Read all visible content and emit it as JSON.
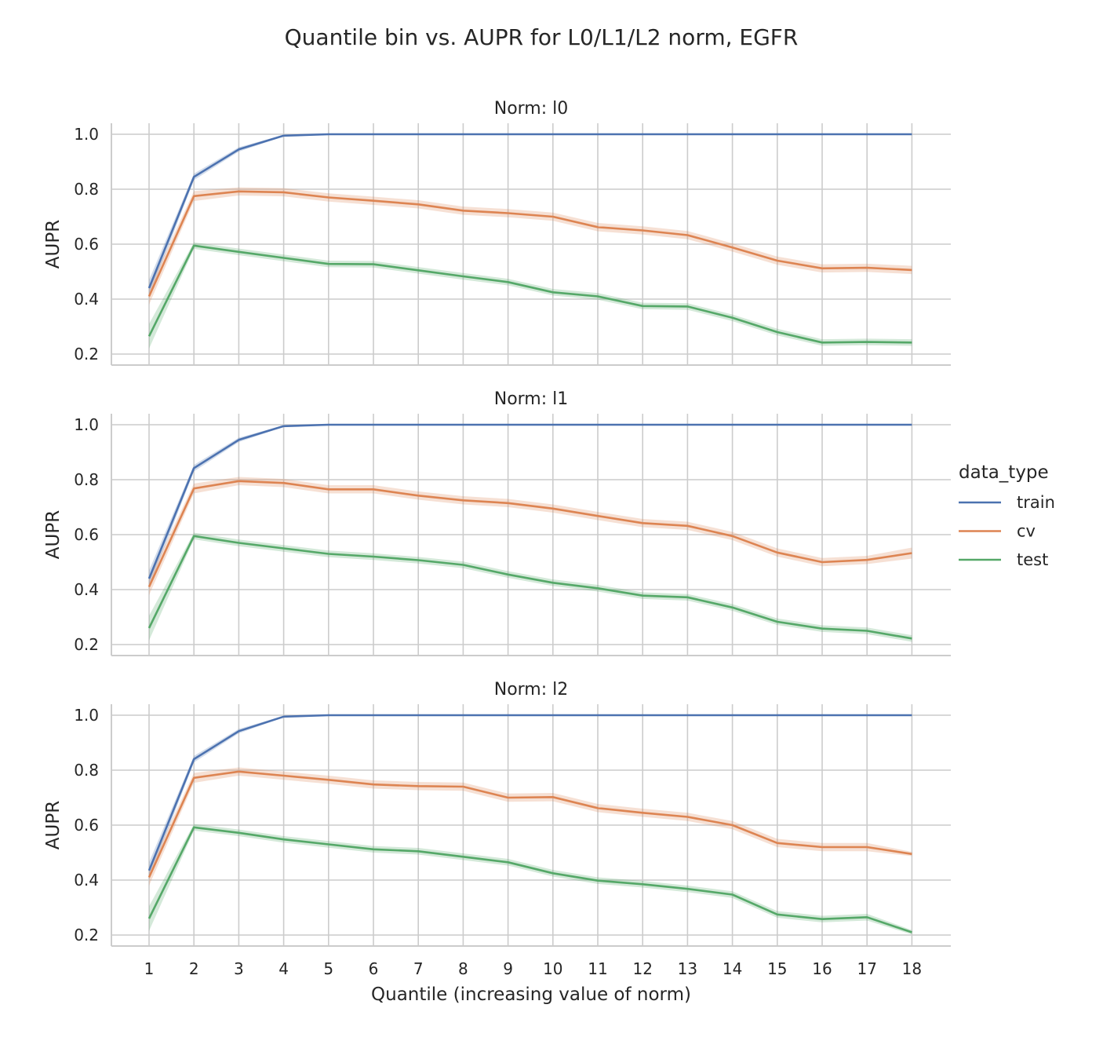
{
  "chart_data": {
    "type": "line",
    "title": "Quantile bin vs. AUPR for L0/L1/L2 norm, EGFR",
    "xlabel": "Quantile (increasing value of norm)",
    "ylabel": "AUPR",
    "x": [
      1,
      2,
      3,
      4,
      5,
      6,
      7,
      8,
      9,
      10,
      11,
      12,
      13,
      14,
      15,
      16,
      17,
      18
    ],
    "yticks": [
      "0.2",
      "0.4",
      "0.6",
      "0.8",
      "1.0"
    ],
    "ylim": [
      0.16,
      1.04
    ],
    "grid": true,
    "legend": {
      "title": "data_type",
      "placement": "right",
      "entries": [
        "train",
        "cv",
        "test"
      ]
    },
    "colors": {
      "train": "#4c72b0",
      "cv": "#dd8452",
      "test": "#55a868"
    },
    "panels": [
      {
        "title": "Norm: l0",
        "series": [
          {
            "name": "train",
            "values": [
              0.44,
              0.845,
              0.945,
              0.995,
              1.0,
              1.0,
              1.0,
              1.0,
              1.0,
              1.0,
              1.0,
              1.0,
              1.0,
              1.0,
              1.0,
              1.0,
              1.0,
              1.0
            ],
            "ci": [
              0.03,
              0.012,
              0.008,
              0.003,
              0,
              0,
              0,
              0,
              0,
              0,
              0,
              0,
              0,
              0,
              0,
              0,
              0,
              0
            ]
          },
          {
            "name": "cv",
            "values": [
              0.41,
              0.775,
              0.792,
              0.789,
              0.77,
              0.758,
              0.745,
              0.722,
              0.713,
              0.7,
              0.662,
              0.65,
              0.633,
              0.588,
              0.54,
              0.512,
              0.514,
              0.506
            ],
            "ci": [
              0.03,
              0.018,
              0.015,
              0.015,
              0.015,
              0.015,
              0.015,
              0.015,
              0.015,
              0.015,
              0.015,
              0.015,
              0.015,
              0.015,
              0.015,
              0.015,
              0.015,
              0.015
            ]
          },
          {
            "name": "test",
            "values": [
              0.265,
              0.595,
              0.572,
              0.55,
              0.528,
              0.527,
              0.505,
              0.483,
              0.462,
              0.425,
              0.41,
              0.375,
              0.373,
              0.332,
              0.28,
              0.242,
              0.244,
              0.242
            ],
            "ci": [
              0.045,
              0.012,
              0.012,
              0.012,
              0.012,
              0.012,
              0.012,
              0.012,
              0.012,
              0.012,
              0.012,
              0.012,
              0.012,
              0.012,
              0.012,
              0.012,
              0.012,
              0.012
            ]
          }
        ]
      },
      {
        "title": "Norm: l1",
        "series": [
          {
            "name": "train",
            "values": [
              0.44,
              0.842,
              0.945,
              0.995,
              1.0,
              1.0,
              1.0,
              1.0,
              1.0,
              1.0,
              1.0,
              1.0,
              1.0,
              1.0,
              1.0,
              1.0,
              1.0,
              1.0
            ],
            "ci": [
              0.03,
              0.012,
              0.008,
              0.003,
              0,
              0,
              0,
              0,
              0,
              0,
              0,
              0,
              0,
              0,
              0,
              0,
              0,
              0
            ]
          },
          {
            "name": "cv",
            "values": [
              0.41,
              0.768,
              0.795,
              0.788,
              0.765,
              0.765,
              0.742,
              0.725,
              0.715,
              0.695,
              0.668,
              0.642,
              0.632,
              0.595,
              0.535,
              0.5,
              0.508,
              0.533
            ],
            "ci": [
              0.03,
              0.018,
              0.015,
              0.015,
              0.015,
              0.015,
              0.015,
              0.015,
              0.015,
              0.015,
              0.015,
              0.015,
              0.015,
              0.015,
              0.015,
              0.015,
              0.015,
              0.02
            ]
          },
          {
            "name": "test",
            "values": [
              0.26,
              0.595,
              0.57,
              0.55,
              0.53,
              0.52,
              0.507,
              0.49,
              0.455,
              0.425,
              0.405,
              0.378,
              0.372,
              0.335,
              0.283,
              0.258,
              0.25,
              0.222
            ],
            "ci": [
              0.045,
              0.012,
              0.012,
              0.012,
              0.012,
              0.012,
              0.012,
              0.012,
              0.012,
              0.012,
              0.012,
              0.012,
              0.012,
              0.012,
              0.012,
              0.012,
              0.012,
              0.012
            ]
          }
        ]
      },
      {
        "title": "Norm: l2",
        "series": [
          {
            "name": "train",
            "values": [
              0.435,
              0.84,
              0.942,
              0.995,
              1.0,
              1.0,
              1.0,
              1.0,
              1.0,
              1.0,
              1.0,
              1.0,
              1.0,
              1.0,
              1.0,
              1.0,
              1.0,
              1.0
            ],
            "ci": [
              0.03,
              0.012,
              0.008,
              0.003,
              0,
              0,
              0,
              0,
              0,
              0,
              0,
              0,
              0,
              0,
              0,
              0,
              0,
              0
            ]
          },
          {
            "name": "cv",
            "values": [
              0.41,
              0.772,
              0.795,
              0.78,
              0.765,
              0.748,
              0.742,
              0.74,
              0.7,
              0.702,
              0.662,
              0.645,
              0.63,
              0.6,
              0.535,
              0.52,
              0.52,
              0.495
            ],
            "ci": [
              0.03,
              0.018,
              0.015,
              0.015,
              0.015,
              0.015,
              0.015,
              0.015,
              0.015,
              0.015,
              0.015,
              0.015,
              0.015,
              0.015,
              0.015,
              0.015,
              0.015,
              0.008
            ]
          },
          {
            "name": "test",
            "values": [
              0.26,
              0.592,
              0.572,
              0.548,
              0.53,
              0.512,
              0.505,
              0.485,
              0.465,
              0.425,
              0.398,
              0.385,
              0.368,
              0.347,
              0.275,
              0.258,
              0.265,
              0.21
            ],
            "ci": [
              0.045,
              0.012,
              0.012,
              0.012,
              0.012,
              0.012,
              0.012,
              0.012,
              0.012,
              0.012,
              0.012,
              0.012,
              0.012,
              0.012,
              0.012,
              0.012,
              0.012,
              0.008
            ]
          }
        ]
      }
    ]
  }
}
